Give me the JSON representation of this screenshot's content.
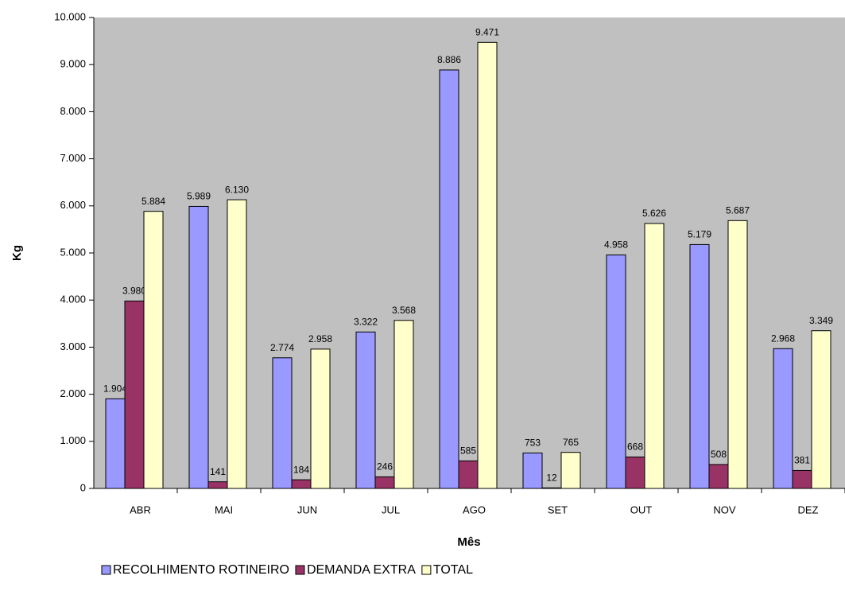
{
  "chart_data": {
    "type": "bar",
    "x_label": "Mês",
    "y_label": "Kg",
    "categories": [
      "ABR",
      "MAI",
      "JUN",
      "JUL",
      "AGO",
      "SET",
      "OUT",
      "NOV",
      "DEZ"
    ],
    "series": [
      {
        "name": "RECOLHIMENTO ROTINEIRO",
        "color": "#9999ff",
        "values": [
          1904,
          5989,
          2774,
          3322,
          8886,
          753,
          4958,
          5179,
          2968
        ],
        "value_labels": [
          "1.904",
          "5.989",
          "2.774",
          "3.322",
          "8.886",
          "753",
          "4.958",
          "5.179",
          "2.968"
        ]
      },
      {
        "name": "DEMANDA EXTRA",
        "color": "#993366",
        "values": [
          3980,
          141,
          184,
          246,
          585,
          12,
          668,
          508,
          381
        ],
        "value_labels": [
          "3.980",
          "141",
          "184",
          "246",
          "585",
          "12",
          "668",
          "508",
          "381"
        ]
      },
      {
        "name": "TOTAL",
        "color": "#ffffcc",
        "values": [
          5884,
          6130,
          2958,
          3568,
          9471,
          765,
          5626,
          5687,
          3349
        ],
        "value_labels": [
          "5.884",
          "6.130",
          "2.958",
          "3.568",
          "9.471",
          "765",
          "5.626",
          "5.687",
          "3.349"
        ]
      }
    ],
    "ylim": [
      0,
      10000
    ],
    "yticks": [
      0,
      {
        "value": 1000,
        "label": "1.000"
      },
      {
        "value": 2000,
        "label": "2.000"
      },
      {
        "value": 3000,
        "label": "3.000"
      },
      {
        "value": 4000,
        "label": "4.000"
      },
      {
        "value": 5000,
        "label": "5.000"
      },
      {
        "value": 6000,
        "label": "6.000"
      },
      {
        "value": 7000,
        "label": "7.000"
      },
      {
        "value": 8000,
        "label": "8.000"
      },
      {
        "value": 9000,
        "label": "9.000"
      },
      {
        "value": 10000,
        "label": "10.000"
      }
    ],
    "plot_background": "#c0c0c0",
    "legend": "bottom"
  }
}
